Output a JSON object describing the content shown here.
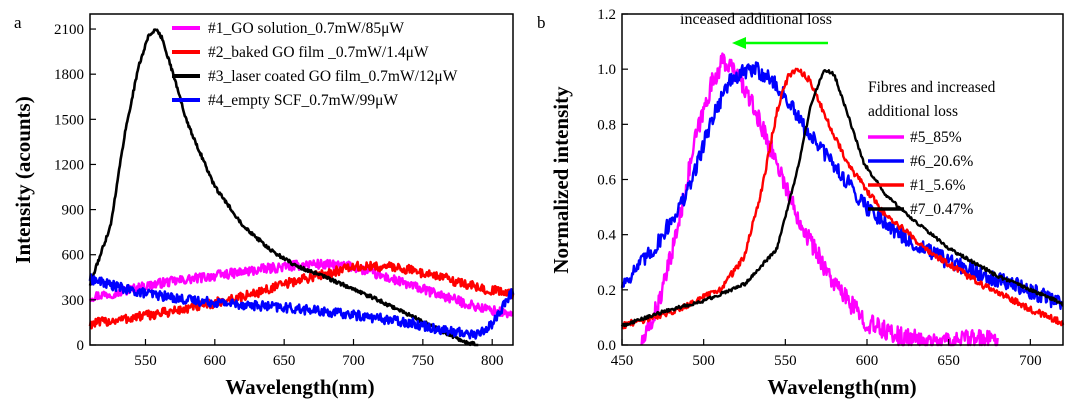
{
  "chart_data": [
    {
      "panel_label": "a",
      "type": "line",
      "xlabel": "Wavelength(nm)",
      "ylabel": "Intensity (acounts)",
      "xlim": [
        510,
        815
      ],
      "ylim": [
        0,
        2200
      ],
      "xticks": [
        550,
        600,
        650,
        700,
        750,
        800
      ],
      "yticks": [
        0,
        300,
        600,
        900,
        1200,
        1500,
        1800,
        2100
      ],
      "grid": false,
      "legend_position": "top-right",
      "series": [
        {
          "name": "#1_GO solution_0.7mW/85μW",
          "color": "#ff00ff",
          "noise": 32,
          "x": [
            510,
            530,
            560,
            600,
            640,
            670,
            700,
            730,
            760,
            790,
            815
          ],
          "y": [
            320,
            350,
            410,
            460,
            510,
            540,
            520,
            430,
            340,
            250,
            200
          ]
        },
        {
          "name": "#2_baked GO film _0.7mW/1.4μW",
          "color": "#ff0000",
          "noise": 32,
          "x": [
            510,
            540,
            580,
            620,
            660,
            700,
            730,
            760,
            790,
            815
          ],
          "y": [
            140,
            180,
            240,
            320,
            430,
            520,
            520,
            460,
            380,
            340
          ]
        },
        {
          "name": "#3_laser coated GO film_0.7mW/12μW",
          "color": "#000000",
          "noise": 12,
          "x": [
            510,
            525,
            535,
            545,
            552,
            557,
            562,
            570,
            580,
            600,
            620,
            640,
            660,
            680,
            700,
            720,
            740,
            760,
            780,
            790
          ],
          "y": [
            400,
            800,
            1400,
            1850,
            2050,
            2100,
            2040,
            1800,
            1480,
            1050,
            800,
            630,
            520,
            450,
            370,
            290,
            200,
            110,
            20,
            0
          ]
        },
        {
          "name": "#4_empty SCF_0.7mW/99μW",
          "color": "#0000ff",
          "noise": 32,
          "x": [
            510,
            540,
            580,
            620,
            660,
            700,
            740,
            770,
            790,
            800,
            815
          ],
          "y": [
            440,
            360,
            300,
            270,
            240,
            200,
            150,
            90,
            70,
            140,
            360
          ]
        }
      ]
    },
    {
      "panel_label": "b",
      "type": "line",
      "xlabel": "Wavelength(nm)",
      "ylabel": "Normalized intensity",
      "xlim": [
        450,
        720
      ],
      "ylim": [
        0,
        1.2
      ],
      "xticks": [
        450,
        500,
        550,
        600,
        650,
        700
      ],
      "yticks": [
        0.0,
        0.2,
        0.4,
        0.6,
        0.8,
        1.0,
        1.2
      ],
      "grid": false,
      "legend_position": "right",
      "annotation": "inceased additional loss",
      "legend_title": "Fibres and increased additional loss",
      "legend_title_lines": [
        "Fibres and increased",
        "additional loss"
      ],
      "arrow_color": "#00ff00",
      "series": [
        {
          "name": "#5_85%",
          "color": "#ff00ff",
          "noise": 0.035,
          "x": [
            462,
            468,
            475,
            485,
            495,
            505,
            512,
            518,
            525,
            535,
            545,
            555,
            565,
            580,
            600,
            620,
            640,
            660,
            680
          ],
          "y": [
            0.0,
            0.08,
            0.2,
            0.45,
            0.75,
            0.95,
            1.03,
            1.0,
            0.93,
            0.8,
            0.66,
            0.5,
            0.38,
            0.22,
            0.08,
            0.03,
            0.01,
            0.02,
            0.02
          ]
        },
        {
          "name": "#6_20.6%",
          "color": "#0000ff",
          "noise": 0.03,
          "x": [
            450,
            470,
            490,
            505,
            515,
            525,
            532,
            540,
            550,
            560,
            580,
            600,
            625,
            650,
            680,
            720
          ],
          "y": [
            0.22,
            0.35,
            0.55,
            0.82,
            0.95,
            0.99,
            1.0,
            0.97,
            0.9,
            0.8,
            0.65,
            0.5,
            0.38,
            0.3,
            0.24,
            0.15
          ]
        },
        {
          "name": "#1_5.6%",
          "color": "#ff0000",
          "noise": 0.012,
          "x": [
            450,
            480,
            510,
            525,
            535,
            545,
            552,
            558,
            565,
            575,
            590,
            610,
            640,
            670,
            700,
            720
          ],
          "y": [
            0.07,
            0.12,
            0.2,
            0.32,
            0.55,
            0.85,
            0.98,
            1.0,
            0.96,
            0.82,
            0.64,
            0.48,
            0.33,
            0.22,
            0.13,
            0.08
          ]
        },
        {
          "name": "#7_0.47%",
          "color": "#000000",
          "noise": 0.006,
          "x": [
            450,
            475,
            500,
            525,
            545,
            558,
            566,
            574,
            580,
            588,
            598,
            612,
            625,
            650,
            680,
            720
          ],
          "y": [
            0.07,
            0.12,
            0.16,
            0.22,
            0.35,
            0.65,
            0.88,
            1.0,
            0.98,
            0.84,
            0.66,
            0.54,
            0.47,
            0.35,
            0.25,
            0.15
          ]
        }
      ]
    }
  ]
}
